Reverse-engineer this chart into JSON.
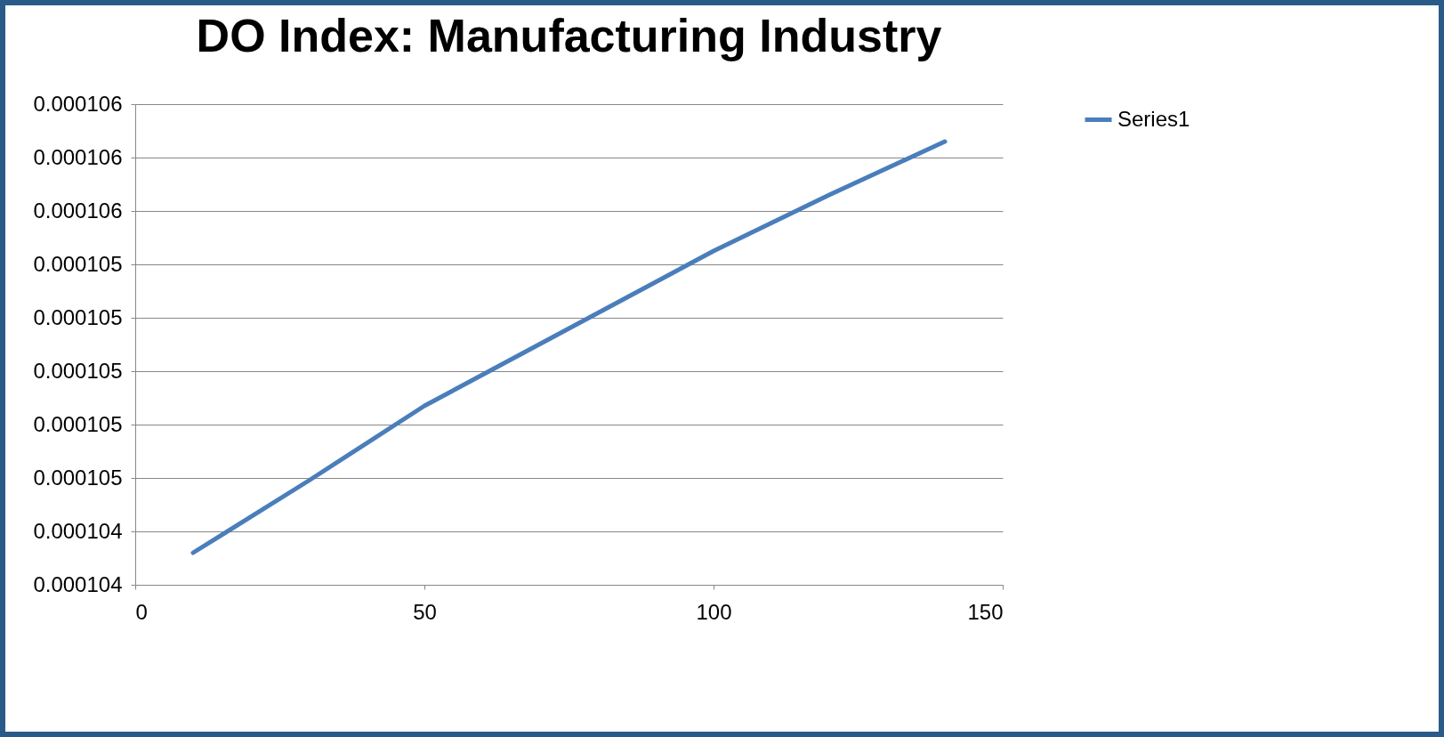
{
  "chart_data": {
    "type": "line",
    "title": "DO Index: Manufacturing Industry",
    "x": [
      10,
      30,
      50,
      75,
      100,
      120,
      140
    ],
    "series": [
      {
        "name": "Series1",
        "color": "#4a7ebb",
        "values": [
          0.00010432,
          0.00010459,
          0.00010487,
          0.00010516,
          0.00010545,
          0.00010566,
          0.00010586
        ]
      }
    ],
    "xlim": [
      0,
      150
    ],
    "xticks": [
      0,
      50,
      100,
      150
    ],
    "ylim": [
      0.0001042,
      0.000106
    ],
    "yticks": [
      {
        "value": 0.0001042,
        "label": "0.000104"
      },
      {
        "value": 0.0001044,
        "label": "0.000104"
      },
      {
        "value": 0.0001046,
        "label": "0.000105"
      },
      {
        "value": 0.0001048,
        "label": "0.000105"
      },
      {
        "value": 0.000105,
        "label": "0.000105"
      },
      {
        "value": 0.0001052,
        "label": "0.000105"
      },
      {
        "value": 0.0001054,
        "label": "0.000105"
      },
      {
        "value": 0.0001056,
        "label": "0.000106"
      },
      {
        "value": 0.0001058,
        "label": "0.000106"
      },
      {
        "value": 0.000106,
        "label": "0.000106"
      }
    ],
    "grid": "y",
    "legend": "right",
    "marker": "none",
    "line_style": "solid"
  }
}
